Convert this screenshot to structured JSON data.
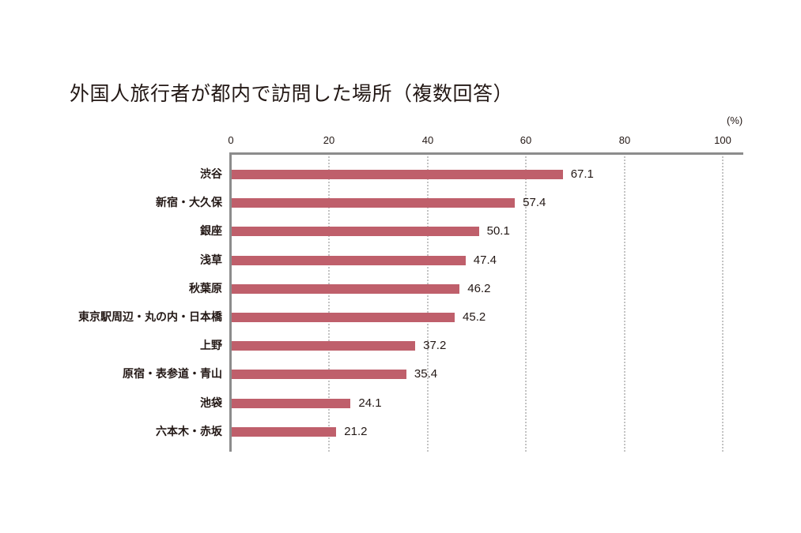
{
  "chart_data": {
    "type": "bar",
    "orientation": "horizontal",
    "title": "外国人旅行者が都内で訪問した場所（複数回答）",
    "unit": "(%)",
    "xlabel": "",
    "ylabel": "",
    "xlim": [
      0,
      100
    ],
    "x_ticks": [
      "0",
      "20",
      "40",
      "60",
      "80",
      "100"
    ],
    "grid": "vertical dotted",
    "bar_color": "#bf5f6b",
    "categories": [
      "渋谷",
      "新宿・大久保",
      "銀座",
      "浅草",
      "秋葉原",
      "東京駅周辺・丸の内・日本橋",
      "上野",
      "原宿・表参道・青山",
      "池袋",
      "六本木・赤坂"
    ],
    "values": [
      67.1,
      57.4,
      50.1,
      47.4,
      46.2,
      45.2,
      37.2,
      35.4,
      24.1,
      21.2
    ],
    "value_labels": [
      "67.1",
      "57.4",
      "50.1",
      "47.4",
      "46.2",
      "45.2",
      "37.2",
      "35.4",
      "24.1",
      "21.2"
    ]
  }
}
